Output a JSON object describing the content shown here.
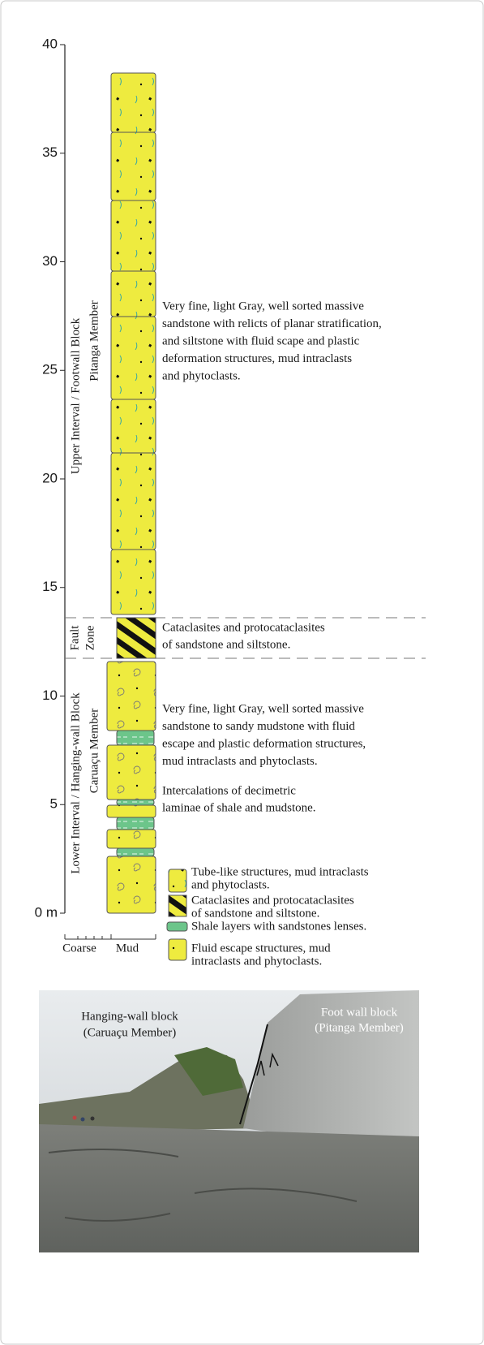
{
  "axis": {
    "ticks": [
      {
        "value": 0,
        "label": "0 m"
      },
      5,
      10,
      15,
      20,
      25,
      30,
      35,
      40
    ]
  },
  "intervals": {
    "upper": {
      "interval": "Upper Interval / Footwall Block",
      "member": "Pitanga Member",
      "description": [
        "Very fine, light Gray, well sorted massive",
        "sandstone with relicts of planar stratification,",
        "and siltstone with fluid scape and plastic",
        "deformation structures, mud intraclasts",
        "and phytoclasts."
      ]
    },
    "fault": {
      "label": [
        "Fault",
        "Zone"
      ],
      "description": [
        "Cataclasites and protocataclasites",
        "of sandstone and siltstone."
      ]
    },
    "lower": {
      "interval": "Lower Interval / Hanging-wall Block",
      "member": "Caruaçu Member",
      "description": [
        "Very fine, light Gray, well sorted massive",
        "sandstone to sandy mudstone with fluid",
        "escape and plastic deformation structures,",
        "mud intraclasts and phytoclasts."
      ],
      "note": [
        "Intercalations of decimetric",
        "laminae of shale and mudstone."
      ]
    }
  },
  "grain_size": {
    "coarse": "Coarse",
    "mud": "Mud"
  },
  "legend": [
    {
      "label": [
        "Tube-like structures, mud intraclasts",
        "and phytoclasts."
      ]
    },
    {
      "label": [
        "Cataclasites and protocataclasites",
        "of sandstone and siltstone."
      ]
    },
    {
      "label": [
        "Shale layers with sandstones lenses."
      ]
    },
    {
      "label": [
        "Fluid escape structures, mud",
        "intraclasts and phytoclasts."
      ]
    }
  ],
  "photo": {
    "left": [
      "Hanging-wall block",
      "(Caruaçu Member)"
    ],
    "right": [
      "Foot wall block",
      "(Pitanga Member)"
    ]
  }
}
